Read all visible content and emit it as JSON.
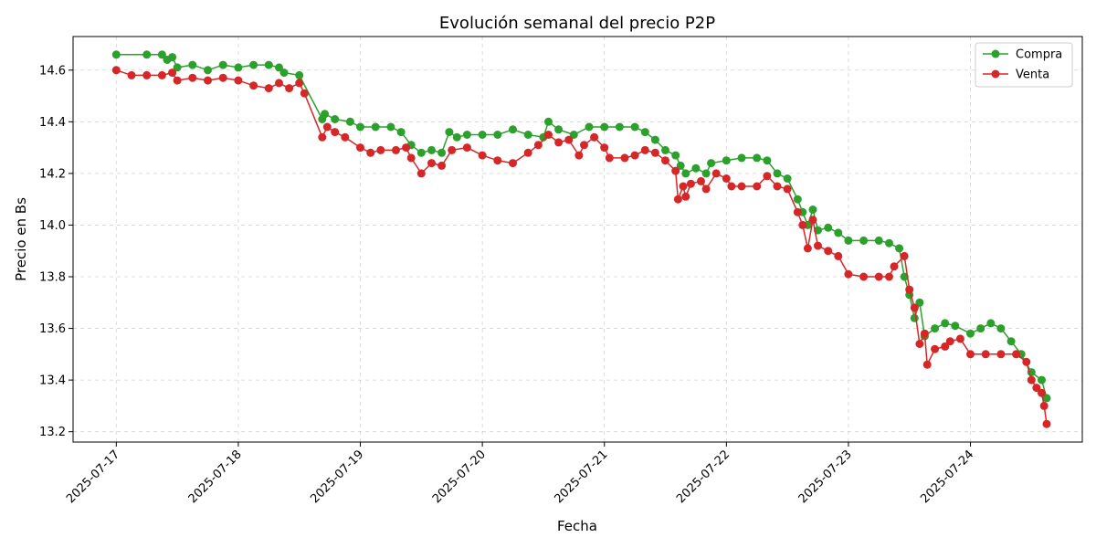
{
  "chart_data": {
    "type": "line",
    "title": "Evolución semanal del precio P2P",
    "xlabel": "Fecha",
    "ylabel": "Precio en Bs",
    "x_ticks": [
      "2025-07-17",
      "2025-07-18",
      "2025-07-19",
      "2025-07-20",
      "2025-07-21",
      "2025-07-22",
      "2025-07-23",
      "2025-07-24"
    ],
    "y_ticks": [
      13.2,
      13.4,
      13.6,
      13.8,
      14.0,
      14.2,
      14.4,
      14.6
    ],
    "ylim": [
      13.16,
      14.73
    ],
    "xlim": [
      "2025-07-16 15:30",
      "2025-07-24 22:00"
    ],
    "grid": true,
    "legend_position": "top-right",
    "series": [
      {
        "name": "Compra",
        "color": "#2ca02c",
        "points": [
          [
            "2025-07-17 00:00",
            14.66
          ],
          [
            "2025-07-17 06:00",
            14.66
          ],
          [
            "2025-07-17 09:00",
            14.66
          ],
          [
            "2025-07-17 10:00",
            14.64
          ],
          [
            "2025-07-17 11:00",
            14.65
          ],
          [
            "2025-07-17 12:00",
            14.61
          ],
          [
            "2025-07-17 15:00",
            14.62
          ],
          [
            "2025-07-17 18:00",
            14.6
          ],
          [
            "2025-07-17 21:00",
            14.62
          ],
          [
            "2025-07-18 00:00",
            14.61
          ],
          [
            "2025-07-18 03:00",
            14.62
          ],
          [
            "2025-07-18 06:00",
            14.62
          ],
          [
            "2025-07-18 08:00",
            14.61
          ],
          [
            "2025-07-18 09:00",
            14.59
          ],
          [
            "2025-07-18 12:00",
            14.58
          ],
          [
            "2025-07-18 16:30",
            14.41
          ],
          [
            "2025-07-18 17:00",
            14.43
          ],
          [
            "2025-07-18 19:00",
            14.41
          ],
          [
            "2025-07-18 22:00",
            14.4
          ],
          [
            "2025-07-19 00:00",
            14.38
          ],
          [
            "2025-07-19 03:00",
            14.38
          ],
          [
            "2025-07-19 06:00",
            14.38
          ],
          [
            "2025-07-19 08:00",
            14.36
          ],
          [
            "2025-07-19 10:00",
            14.31
          ],
          [
            "2025-07-19 12:00",
            14.28
          ],
          [
            "2025-07-19 14:00",
            14.29
          ],
          [
            "2025-07-19 16:00",
            14.28
          ],
          [
            "2025-07-19 17:30",
            14.36
          ],
          [
            "2025-07-19 19:00",
            14.34
          ],
          [
            "2025-07-19 21:00",
            14.35
          ],
          [
            "2025-07-20 00:00",
            14.35
          ],
          [
            "2025-07-20 03:00",
            14.35
          ],
          [
            "2025-07-20 06:00",
            14.37
          ],
          [
            "2025-07-20 09:00",
            14.35
          ],
          [
            "2025-07-20 12:00",
            14.34
          ],
          [
            "2025-07-20 13:00",
            14.4
          ],
          [
            "2025-07-20 15:00",
            14.37
          ],
          [
            "2025-07-20 18:00",
            14.35
          ],
          [
            "2025-07-20 21:00",
            14.38
          ],
          [
            "2025-07-21 00:00",
            14.38
          ],
          [
            "2025-07-21 03:00",
            14.38
          ],
          [
            "2025-07-21 06:00",
            14.38
          ],
          [
            "2025-07-21 08:00",
            14.36
          ],
          [
            "2025-07-21 10:00",
            14.33
          ],
          [
            "2025-07-21 12:00",
            14.29
          ],
          [
            "2025-07-21 14:00",
            14.27
          ],
          [
            "2025-07-21 15:00",
            14.23
          ],
          [
            "2025-07-21 16:00",
            14.2
          ],
          [
            "2025-07-21 18:00",
            14.22
          ],
          [
            "2025-07-21 20:00",
            14.2
          ],
          [
            "2025-07-21 21:00",
            14.24
          ],
          [
            "2025-07-22 00:00",
            14.25
          ],
          [
            "2025-07-22 03:00",
            14.26
          ],
          [
            "2025-07-22 06:00",
            14.26
          ],
          [
            "2025-07-22 08:00",
            14.25
          ],
          [
            "2025-07-22 10:00",
            14.2
          ],
          [
            "2025-07-22 12:00",
            14.18
          ],
          [
            "2025-07-22 14:00",
            14.1
          ],
          [
            "2025-07-22 15:00",
            14.05
          ],
          [
            "2025-07-22 16:00",
            14.0
          ],
          [
            "2025-07-22 17:00",
            14.06
          ],
          [
            "2025-07-22 18:00",
            13.98
          ],
          [
            "2025-07-22 20:00",
            13.99
          ],
          [
            "2025-07-22 22:00",
            13.97
          ],
          [
            "2025-07-23 00:00",
            13.94
          ],
          [
            "2025-07-23 03:00",
            13.94
          ],
          [
            "2025-07-23 06:00",
            13.94
          ],
          [
            "2025-07-23 08:00",
            13.93
          ],
          [
            "2025-07-23 10:00",
            13.91
          ],
          [
            "2025-07-23 11:00",
            13.8
          ],
          [
            "2025-07-23 12:00",
            13.73
          ],
          [
            "2025-07-23 13:00",
            13.64
          ],
          [
            "2025-07-23 14:00",
            13.7
          ],
          [
            "2025-07-23 15:00",
            13.57
          ],
          [
            "2025-07-23 17:00",
            13.6
          ],
          [
            "2025-07-23 19:00",
            13.62
          ],
          [
            "2025-07-23 21:00",
            13.61
          ],
          [
            "2025-07-24 00:00",
            13.58
          ],
          [
            "2025-07-24 02:00",
            13.6
          ],
          [
            "2025-07-24 04:00",
            13.62
          ],
          [
            "2025-07-24 06:00",
            13.6
          ],
          [
            "2025-07-24 08:00",
            13.55
          ],
          [
            "2025-07-24 10:00",
            13.5
          ],
          [
            "2025-07-24 12:00",
            13.43
          ],
          [
            "2025-07-24 14:00",
            13.4
          ],
          [
            "2025-07-24 15:00",
            13.33
          ]
        ]
      },
      {
        "name": "Venta",
        "color": "#d62728",
        "points": [
          [
            "2025-07-17 00:00",
            14.6
          ],
          [
            "2025-07-17 03:00",
            14.58
          ],
          [
            "2025-07-17 06:00",
            14.58
          ],
          [
            "2025-07-17 09:00",
            14.58
          ],
          [
            "2025-07-17 11:00",
            14.59
          ],
          [
            "2025-07-17 12:00",
            14.56
          ],
          [
            "2025-07-17 15:00",
            14.57
          ],
          [
            "2025-07-17 18:00",
            14.56
          ],
          [
            "2025-07-17 21:00",
            14.57
          ],
          [
            "2025-07-18 00:00",
            14.56
          ],
          [
            "2025-07-18 03:00",
            14.54
          ],
          [
            "2025-07-18 06:00",
            14.53
          ],
          [
            "2025-07-18 08:00",
            14.55
          ],
          [
            "2025-07-18 10:00",
            14.53
          ],
          [
            "2025-07-18 12:00",
            14.55
          ],
          [
            "2025-07-18 13:00",
            14.51
          ],
          [
            "2025-07-18 16:30",
            14.34
          ],
          [
            "2025-07-18 17:30",
            14.38
          ],
          [
            "2025-07-18 19:00",
            14.36
          ],
          [
            "2025-07-18 21:00",
            14.34
          ],
          [
            "2025-07-19 00:00",
            14.3
          ],
          [
            "2025-07-19 02:00",
            14.28
          ],
          [
            "2025-07-19 04:00",
            14.29
          ],
          [
            "2025-07-19 07:00",
            14.29
          ],
          [
            "2025-07-19 09:00",
            14.3
          ],
          [
            "2025-07-19 10:00",
            14.26
          ],
          [
            "2025-07-19 12:00",
            14.2
          ],
          [
            "2025-07-19 14:00",
            14.24
          ],
          [
            "2025-07-19 16:00",
            14.23
          ],
          [
            "2025-07-19 18:00",
            14.29
          ],
          [
            "2025-07-19 21:00",
            14.3
          ],
          [
            "2025-07-20 00:00",
            14.27
          ],
          [
            "2025-07-20 03:00",
            14.25
          ],
          [
            "2025-07-20 06:00",
            14.24
          ],
          [
            "2025-07-20 09:00",
            14.28
          ],
          [
            "2025-07-20 11:00",
            14.31
          ],
          [
            "2025-07-20 13:00",
            14.35
          ],
          [
            "2025-07-20 15:00",
            14.32
          ],
          [
            "2025-07-20 17:00",
            14.33
          ],
          [
            "2025-07-20 19:00",
            14.27
          ],
          [
            "2025-07-20 20:00",
            14.31
          ],
          [
            "2025-07-20 22:00",
            14.34
          ],
          [
            "2025-07-21 00:00",
            14.3
          ],
          [
            "2025-07-21 01:00",
            14.26
          ],
          [
            "2025-07-21 04:00",
            14.26
          ],
          [
            "2025-07-21 06:00",
            14.27
          ],
          [
            "2025-07-21 08:00",
            14.29
          ],
          [
            "2025-07-21 10:00",
            14.28
          ],
          [
            "2025-07-21 12:00",
            14.25
          ],
          [
            "2025-07-21 14:00",
            14.21
          ],
          [
            "2025-07-21 14:30",
            14.1
          ],
          [
            "2025-07-21 15:30",
            14.15
          ],
          [
            "2025-07-21 16:00",
            14.11
          ],
          [
            "2025-07-21 17:00",
            14.16
          ],
          [
            "2025-07-21 19:00",
            14.17
          ],
          [
            "2025-07-21 20:00",
            14.14
          ],
          [
            "2025-07-21 22:00",
            14.2
          ],
          [
            "2025-07-22 00:00",
            14.18
          ],
          [
            "2025-07-22 01:00",
            14.15
          ],
          [
            "2025-07-22 03:00",
            14.15
          ],
          [
            "2025-07-22 06:00",
            14.15
          ],
          [
            "2025-07-22 08:00",
            14.19
          ],
          [
            "2025-07-22 10:00",
            14.15
          ],
          [
            "2025-07-22 12:00",
            14.14
          ],
          [
            "2025-07-22 14:00",
            14.05
          ],
          [
            "2025-07-22 15:00",
            14.0
          ],
          [
            "2025-07-22 16:00",
            13.91
          ],
          [
            "2025-07-22 17:00",
            14.02
          ],
          [
            "2025-07-22 18:00",
            13.92
          ],
          [
            "2025-07-22 20:00",
            13.9
          ],
          [
            "2025-07-22 22:00",
            13.88
          ],
          [
            "2025-07-23 00:00",
            13.81
          ],
          [
            "2025-07-23 03:00",
            13.8
          ],
          [
            "2025-07-23 06:00",
            13.8
          ],
          [
            "2025-07-23 08:00",
            13.8
          ],
          [
            "2025-07-23 09:00",
            13.84
          ],
          [
            "2025-07-23 11:00",
            13.88
          ],
          [
            "2025-07-23 12:00",
            13.75
          ],
          [
            "2025-07-23 13:00",
            13.68
          ],
          [
            "2025-07-23 14:00",
            13.54
          ],
          [
            "2025-07-23 15:00",
            13.58
          ],
          [
            "2025-07-23 15:30",
            13.46
          ],
          [
            "2025-07-23 17:00",
            13.52
          ],
          [
            "2025-07-23 19:00",
            13.53
          ],
          [
            "2025-07-23 20:00",
            13.55
          ],
          [
            "2025-07-23 22:00",
            13.56
          ],
          [
            "2025-07-24 00:00",
            13.5
          ],
          [
            "2025-07-24 03:00",
            13.5
          ],
          [
            "2025-07-24 06:00",
            13.5
          ],
          [
            "2025-07-24 09:00",
            13.5
          ],
          [
            "2025-07-24 11:00",
            13.47
          ],
          [
            "2025-07-24 12:00",
            13.4
          ],
          [
            "2025-07-24 13:00",
            13.37
          ],
          [
            "2025-07-24 14:00",
            13.35
          ],
          [
            "2025-07-24 14:30",
            13.3
          ],
          [
            "2025-07-24 15:00",
            13.23
          ]
        ]
      }
    ]
  }
}
